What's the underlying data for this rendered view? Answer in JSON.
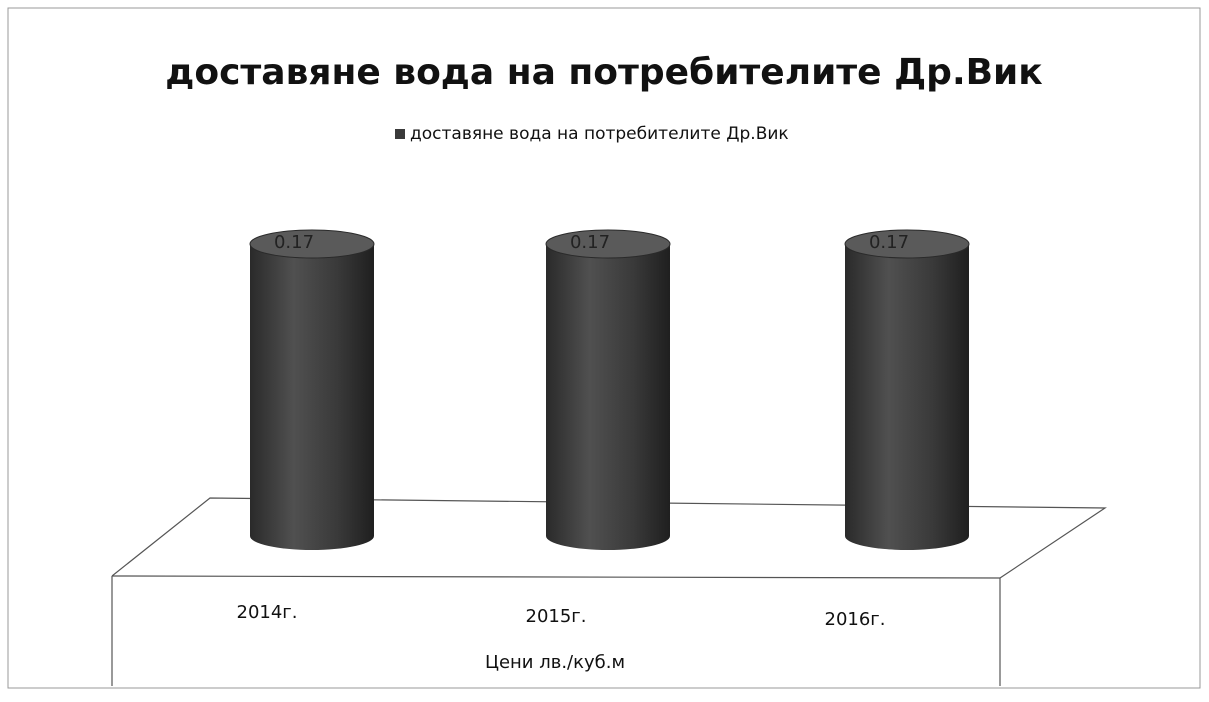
{
  "chart_data": {
    "type": "bar",
    "bar_shape": "cylinder",
    "title": "доставяне вода на потребителите Др.Вик",
    "categories": [
      "2014г.",
      "2015г.",
      "2016г."
    ],
    "series": [
      {
        "name": "доставяне вода на потребителите Др.Вик",
        "values": [
          0.17,
          0.17,
          0.17
        ],
        "data_labels": [
          "0.17",
          "0.17",
          "0.17"
        ]
      }
    ],
    "xlabel": "Цени лв./куб.м",
    "ylabel": "",
    "ylim": [
      0,
      0.17
    ],
    "grid": false,
    "legend_position": "top",
    "colors": {
      "bar": "#3a3a3a",
      "bar_top": "#5a5a5a",
      "frame": "#555555",
      "text": "#111111"
    }
  }
}
